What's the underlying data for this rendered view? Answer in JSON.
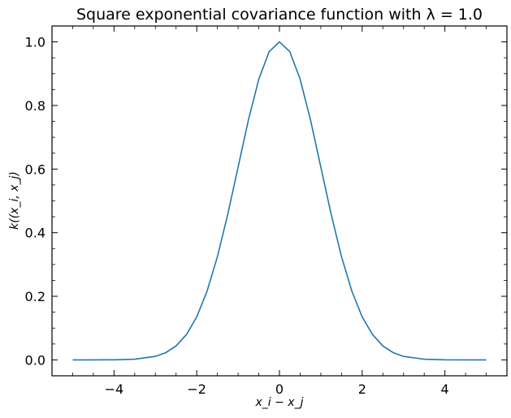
{
  "chart_data": {
    "type": "line",
    "title": "Square exponential covariance function with λ = 1.0",
    "xlabel": "x_i − x_j",
    "ylabel": "k((x_i, x_j)",
    "xlim": [
      -5.5,
      5.5
    ],
    "ylim": [
      -0.05,
      1.05
    ],
    "x_ticks": [
      -4,
      -2,
      0,
      2,
      4
    ],
    "y_ticks": [
      0.0,
      0.2,
      0.4,
      0.6,
      0.8,
      1.0
    ],
    "x_tick_labels": [
      "−4",
      "−2",
      "0",
      "2",
      "4"
    ],
    "y_tick_labels": [
      "0.0",
      "0.2",
      "0.4",
      "0.6",
      "0.8",
      "1.0"
    ],
    "grid": false,
    "series": [
      {
        "color": "#1f77b4",
        "x": [
          -5.0,
          -4.5,
          -4.0,
          -3.5,
          -3.0,
          -2.75,
          -2.5,
          -2.25,
          -2.0,
          -1.75,
          -1.5,
          -1.25,
          -1.0,
          -0.75,
          -0.5,
          -0.25,
          0.0,
          0.25,
          0.5,
          0.75,
          1.0,
          1.25,
          1.5,
          1.75,
          2.0,
          2.25,
          2.5,
          2.75,
          3.0,
          3.5,
          4.0,
          4.5,
          5.0
        ],
        "y": [
          0.0,
          0.0,
          0.0003,
          0.0022,
          0.011,
          0.0228,
          0.0439,
          0.0796,
          0.1353,
          0.2163,
          0.3247,
          0.4578,
          0.6065,
          0.7548,
          0.8825,
          0.9692,
          1.0,
          0.9692,
          0.8825,
          0.7548,
          0.6065,
          0.4578,
          0.3247,
          0.2163,
          0.1353,
          0.0796,
          0.0439,
          0.0228,
          0.011,
          0.0022,
          0.0003,
          0.0,
          0.0
        ]
      }
    ]
  }
}
